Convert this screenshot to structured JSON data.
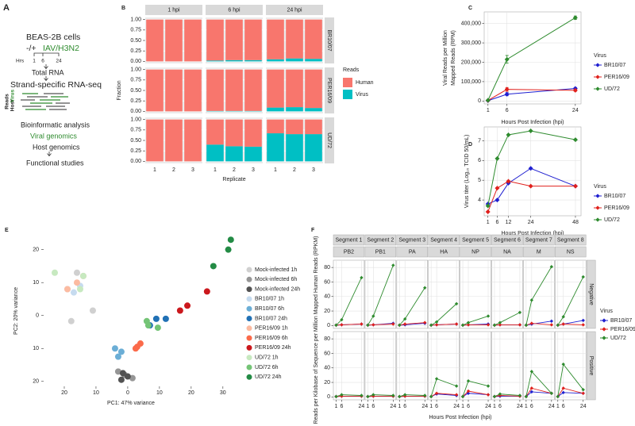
{
  "schematic": {
    "panel": "A",
    "cell_line": "BEAS-2B cells",
    "treatment": "-/+",
    "virus": "IAV/H3N2",
    "hours_label": "Hrs",
    "hours": [
      "1",
      "6",
      "24"
    ],
    "step1": "Total RNA",
    "step2": "Strand-specific RNA-seq",
    "reads_label": "Reads",
    "host_label": "Host",
    "virus_label": "Virus",
    "steps": [
      "Bioinformatic analysis",
      "Viral genomics",
      "Host genomics",
      "Functional studies"
    ]
  },
  "chart_data": [
    {
      "panel": "B",
      "type": "bar",
      "stacked": true,
      "ylabel": "Fraction",
      "xlabel": "Replicate",
      "legend_title": "Reads",
      "facet_cols": [
        "1 hpi",
        "6 hpi",
        "24 hpi"
      ],
      "facet_rows": [
        "BR10/07",
        "PER16/09",
        "UD/72"
      ],
      "categories": [
        "1",
        "2",
        "3"
      ],
      "ylim": [
        -0.05,
        1.05
      ],
      "yticks": [
        {
          "value": 0,
          "label": "0.00"
        },
        {
          "value": 0.25,
          "label": "0.25"
        },
        {
          "value": 0.5,
          "label": "0.50"
        },
        {
          "value": 0.75,
          "label": "0.75"
        },
        {
          "value": 1,
          "label": "1.00"
        }
      ],
      "grid": true,
      "series": [
        {
          "name": "Human",
          "color": "#f8766d",
          "values": [
            [
              [
                1,
                1,
                1
              ],
              [
                0.98,
                0.97,
                0.97
              ],
              [
                0.95,
                0.93,
                0.94
              ]
            ],
            [
              [
                1,
                1,
                1
              ],
              [
                0.99,
                0.99,
                0.99
              ],
              [
                0.91,
                0.9,
                0.92
              ]
            ],
            [
              [
                1,
                1,
                1
              ],
              [
                0.6,
                0.64,
                0.65
              ],
              [
                0.33,
                0.35,
                0.35
              ]
            ]
          ]
        },
        {
          "name": "Virus",
          "color": "#00bfc4",
          "values": [
            [
              [
                0,
                0,
                0
              ],
              [
                0.02,
                0.03,
                0.03
              ],
              [
                0.05,
                0.07,
                0.06
              ]
            ],
            [
              [
                0,
                0,
                0
              ],
              [
                0.01,
                0.01,
                0.01
              ],
              [
                0.09,
                0.1,
                0.08
              ]
            ],
            [
              [
                0,
                0,
                0
              ],
              [
                0.4,
                0.36,
                0.35
              ],
              [
                0.67,
                0.65,
                0.65
              ]
            ]
          ]
        }
      ]
    },
    {
      "panel": "C",
      "type": "line",
      "xlabel": "Hours Post  Infection (hpi)",
      "ylabel": [
        "Viral Reads per Million",
        "Mapped Reads (RPM)"
      ],
      "legend_title": "Virus",
      "x": [
        1,
        6,
        24
      ],
      "xlim": [
        0,
        25.5
      ],
      "xticks": [
        1,
        6,
        24
      ],
      "ylim": [
        -15000,
        460000
      ],
      "yticks": [
        0,
        {
          "value": 100000,
          "label": "100,000"
        },
        {
          "value": 200000,
          "label": "200,000"
        },
        {
          "value": 300000,
          "label": "300,000"
        },
        {
          "value": 400000,
          "label": "400,000"
        }
      ],
      "grid": true,
      "series": [
        {
          "name": "BR10/07",
          "color": "#1f1fd0",
          "values": [
            2000,
            35000,
            65000
          ],
          "errors": [
            1500,
            8000,
            5000
          ]
        },
        {
          "name": "PER16/09",
          "color": "#e0201c",
          "values": [
            3000,
            60000,
            55000
          ],
          "errors": [
            1500,
            10000,
            5000
          ]
        },
        {
          "name": "UD/72",
          "color": "#2e8b2e",
          "values": [
            4000,
            215000,
            430000
          ],
          "errors": [
            2000,
            20000,
            9000
          ]
        }
      ]
    },
    {
      "panel": "D",
      "type": "line",
      "xlabel": "Hours Post  Infection (hpi)",
      "ylabel": "Virus titer (Log₁₀ TCID 50/mL)",
      "legend_title": "Virus",
      "x": [
        1,
        6,
        12,
        24,
        48
      ],
      "xlim": [
        -1,
        51
      ],
      "xticks": [
        1,
        6,
        12,
        24,
        48
      ],
      "ylim": [
        3.2,
        7.7
      ],
      "yticks": [
        4,
        5,
        6,
        7
      ],
      "grid": true,
      "series": [
        {
          "name": "BR10/07",
          "color": "#1f1fd0",
          "values": [
            3.8,
            4.0,
            4.85,
            5.6,
            4.7
          ]
        },
        {
          "name": "PER16/09",
          "color": "#e0201c",
          "values": [
            3.4,
            4.6,
            4.95,
            4.7,
            4.7
          ]
        },
        {
          "name": "UD/72",
          "color": "#2e8b2e",
          "values": [
            3.7,
            6.1,
            7.3,
            7.5,
            7.05
          ]
        }
      ]
    },
    {
      "panel": "E",
      "type": "scatter",
      "xlabel": "PC1: 47% variance",
      "ylabel": "PC2: 20% variance",
      "xlim": [
        -26.5,
        34.8
      ],
      "ylim": [
        -21.5,
        24.5
      ],
      "xticks": [
        {
          "value": -20,
          "label": "20"
        },
        {
          "value": -10,
          "label": "10"
        },
        0,
        10,
        20,
        30
      ],
      "yticks": [
        {
          "value": -20,
          "label": "20"
        },
        {
          "value": -10,
          "label": "10"
        },
        0,
        10,
        20
      ],
      "grid": false,
      "series": [
        {
          "name": "Mock-infected 1h",
          "color": "#d0d0d0",
          "x": [
            -16,
            -17.8,
            -11
          ],
          "y": [
            13,
            -1.7,
            1.5
          ]
        },
        {
          "name": "Mock-infected 6h",
          "color": "#969696",
          "x": [
            -3,
            -1,
            1.5
          ],
          "y": [
            -17,
            -18,
            -19
          ]
        },
        {
          "name": "Mock-infected 24h",
          "color": "#525252",
          "x": [
            -2,
            0,
            -1.5
          ],
          "y": [
            -19.5,
            -18.5,
            -17.5
          ]
        },
        {
          "name": "BR10/07 1h",
          "color": "#c6dbef",
          "x": [
            -17,
            -19,
            -15
          ],
          "y": [
            7,
            8,
            9
          ]
        },
        {
          "name": "BR10/07 6h",
          "color": "#6baed6",
          "x": [
            -4,
            -3,
            -2
          ],
          "y": [
            -10,
            -12.5,
            -11
          ]
        },
        {
          "name": "BR10/07 24h",
          "color": "#2171b5",
          "x": [
            9,
            12,
            7
          ],
          "y": [
            -1,
            -1,
            -3
          ]
        },
        {
          "name": "PER16/09 1h",
          "color": "#fcbba1",
          "x": [
            -19,
            -14,
            -16
          ],
          "y": [
            8,
            12,
            10
          ]
        },
        {
          "name": "PER16/09 6h",
          "color": "#fb6a4a",
          "x": [
            3,
            4,
            2.5
          ],
          "y": [
            -9.5,
            -8.5,
            -10
          ]
        },
        {
          "name": "PER16/09 24h",
          "color": "#cb181d",
          "x": [
            16.5,
            18.8,
            25
          ],
          "y": [
            1.5,
            3,
            7.3
          ]
        },
        {
          "name": "UD/72 1h",
          "color": "#c7e9c0",
          "x": [
            -23,
            -14,
            -15
          ],
          "y": [
            13,
            12,
            8
          ]
        },
        {
          "name": "UD/72 6h",
          "color": "#74c476",
          "x": [
            6.5,
            6,
            9.5
          ],
          "y": [
            -3,
            -1.7,
            -3.7
          ]
        },
        {
          "name": "UD/72 24h",
          "color": "#238b45",
          "x": [
            32.5,
            31.7,
            27
          ],
          "y": [
            23,
            20,
            15
          ]
        }
      ]
    },
    {
      "panel": "F",
      "type": "line",
      "xlabel": "Hours Post  Infection (hpi)",
      "ylabel": "Reads per Kilobase of Sequence per Million Mapped Human Reads (RPKM)",
      "legend_title": "Virus",
      "facet_cols": [
        {
          "segment": "Segment 1",
          "gene": "PB2"
        },
        {
          "segment": "Segment 2",
          "gene": "PB1"
        },
        {
          "segment": "Segment 3",
          "gene": "PA"
        },
        {
          "segment": "Segment 4",
          "gene": "HA"
        },
        {
          "segment": "Segment 5",
          "gene": "NP"
        },
        {
          "segment": "Segment 6",
          "gene": "NA"
        },
        {
          "segment": "Segment 7",
          "gene": "M"
        },
        {
          "segment": "Segment 8",
          "gene": "NS"
        }
      ],
      "facet_rows": [
        "Negative",
        "Positive"
      ],
      "x": [
        1,
        6,
        24
      ],
      "xlim": [
        -1.5,
        26.5
      ],
      "xticks": [
        1,
        6,
        24
      ],
      "ylim": [
        -4,
        90
      ],
      "yticks": [
        0,
        20,
        40,
        60,
        80
      ],
      "grid": true,
      "series": [
        {
          "name": "BR10/07",
          "color": "#1f1fd0",
          "values": [
            [
              [
                0.5,
                1,
                2
              ],
              [
                0.5,
                1,
                3
              ],
              [
                0.5,
                1,
                3
              ],
              [
                0.5,
                1,
                2
              ],
              [
                0.5,
                1,
                2
              ],
              [
                0.5,
                1,
                1
              ],
              [
                0.5,
                2,
                6
              ],
              [
                0.5,
                2,
                7
              ]
            ],
            [
              [
                0.5,
                1,
                1
              ],
              [
                0.5,
                1,
                1
              ],
              [
                0.5,
                1,
                1
              ],
              [
                0.5,
                4,
                2
              ],
              [
                0.5,
                5,
                3
              ],
              [
                0.5,
                1,
                1
              ],
              [
                0.5,
                7,
                5
              ],
              [
                0.5,
                6,
                5
              ]
            ]
          ]
        },
        {
          "name": "PER16/09",
          "color": "#e0201c",
          "values": [
            [
              [
                0.5,
                1,
                2
              ],
              [
                0.5,
                1,
                2
              ],
              [
                0.5,
                2,
                4
              ],
              [
                0.5,
                1,
                2
              ],
              [
                0.5,
                1,
                1
              ],
              [
                0.5,
                1,
                1
              ],
              [
                0.5,
                3,
                1
              ],
              [
                0.5,
                2,
                1
              ]
            ],
            [
              [
                0.5,
                1,
                1
              ],
              [
                0.5,
                1,
                1
              ],
              [
                0.5,
                1,
                1
              ],
              [
                0.5,
                5,
                3
              ],
              [
                0.5,
                8,
                3
              ],
              [
                0.5,
                2,
                1
              ],
              [
                0.5,
                12,
                5
              ],
              [
                0.5,
                12,
                5
              ]
            ]
          ]
        },
        {
          "name": "UD/72",
          "color": "#2e8b2e",
          "values": [
            [
              [
                0.5,
                8,
                66
              ],
              [
                0.5,
                13,
                83
              ],
              [
                0.5,
                9,
                52
              ],
              [
                0.5,
                5,
                30
              ],
              [
                0.5,
                4,
                13
              ],
              [
                0.5,
                4,
                18
              ],
              [
                0.5,
                35,
                81
              ],
              [
                0.5,
                12,
                67
              ]
            ],
            [
              [
                0.5,
                3,
                2
              ],
              [
                0.5,
                3,
                2
              ],
              [
                0.5,
                3,
                2
              ],
              [
                0.5,
                25,
                15
              ],
              [
                0.5,
                22,
                15
              ],
              [
                0.5,
                4,
                2
              ],
              [
                0.5,
                35,
                5
              ],
              [
                0.5,
                45,
                10
              ]
            ]
          ]
        }
      ]
    }
  ]
}
